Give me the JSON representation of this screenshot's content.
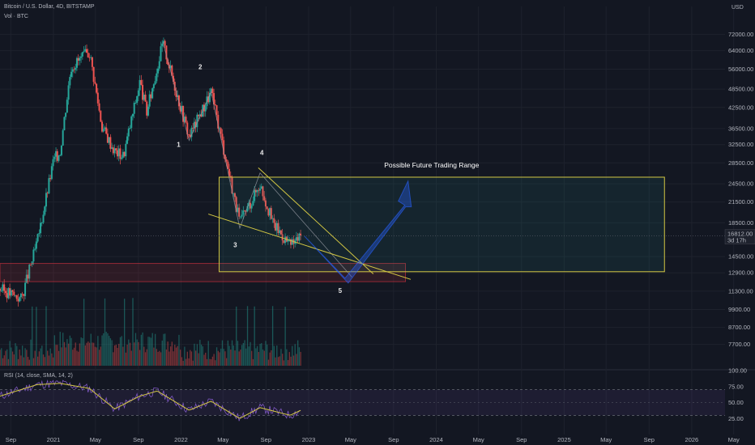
{
  "header": {
    "symbol": "Bitcoin / U.S. Dollar, 4D, BITSTAMP",
    "volume": "Vol · BTC",
    "currency": "USD",
    "rsi_title": "RSI (14, close, SMA, 14, 2)"
  },
  "price_panel": {
    "current_price": "16812.00",
    "countdown": "3d 17h",
    "axis_labels": [
      "72000.00",
      "64000.00",
      "56000.00",
      "48500.00",
      "42500.00",
      "36500.00",
      "32500.00",
      "28500.00",
      "24500.00",
      "21500.00",
      "18500.00",
      "14500.00",
      "12900.00",
      "11300.00",
      "9900.00",
      "8700.00",
      "7700.00"
    ],
    "ylim": [
      6600,
      88000
    ],
    "scale": "log"
  },
  "rsi_panel": {
    "axis_labels": [
      "100.00",
      "75.00",
      "50.00",
      "25.00"
    ],
    "ylim": [
      0,
      100
    ],
    "levels": [
      30,
      70
    ]
  },
  "x_axis": {
    "labels": [
      "Sep",
      "2021",
      "May",
      "Sep",
      "2022",
      "May",
      "Sep",
      "2023",
      "May",
      "Sep",
      "2024",
      "May",
      "Sep",
      "2025",
      "May",
      "Sep",
      "2026",
      "May"
    ]
  },
  "annotations": {
    "range_label": "Possible Future Trading Range",
    "waves": [
      "1",
      "2",
      "3",
      "4",
      "5"
    ]
  },
  "colors": {
    "background": "#131722",
    "up": "#26a69a",
    "down": "#ef5350",
    "range_box": "#d4c843",
    "rsi_line": "#7e57c2",
    "rsi_ma": "#d4c843",
    "arrow": "#2962ff"
  },
  "chart_data": [
    {
      "type": "line",
      "name": "BTC/USD (4D) price path, approximate",
      "x": [
        "2020-08-01",
        "2020-10-01",
        "2020-11-15",
        "2021-01-01",
        "2021-01-20",
        "2021-02-20",
        "2021-04-14",
        "2021-05-20",
        "2021-06-25",
        "2021-07-20",
        "2021-09-05",
        "2021-09-25",
        "2021-11-10",
        "2021-12-20",
        "2022-01-24",
        "2022-03-28",
        "2022-05-12",
        "2022-06-18",
        "2022-08-15",
        "2022-09-20",
        "2022-11-09",
        "2022-12-10"
      ],
      "y": [
        11500,
        10700,
        16000,
        29000,
        31000,
        57000,
        63500,
        37000,
        31000,
        30000,
        51000,
        41000,
        68000,
        47000,
        34500,
        47500,
        28500,
        18500,
        24500,
        18500,
        15700,
        16812
      ]
    },
    {
      "type": "bar",
      "name": "Volume (relative)",
      "description": "volume histogram",
      "x": [
        "2020-08",
        "2021-01",
        "2021-05",
        "2022-05",
        "2022-06",
        "2022-11"
      ],
      "values": [
        0.25,
        0.55,
        1.0,
        0.6,
        0.75,
        0.5
      ]
    },
    {
      "type": "line",
      "name": "RSI (14, close)",
      "x": [
        "2020-08-01",
        "2020-11-15",
        "2021-01-20",
        "2021-04-14",
        "2021-06-25",
        "2021-09-05",
        "2021-10-25",
        "2022-01-24",
        "2022-03-28",
        "2022-06-18",
        "2022-08-15",
        "2022-11-09",
        "2022-12-10"
      ],
      "y": [
        60,
        78,
        80,
        72,
        40,
        60,
        68,
        38,
        52,
        25,
        42,
        30,
        38
      ]
    }
  ]
}
